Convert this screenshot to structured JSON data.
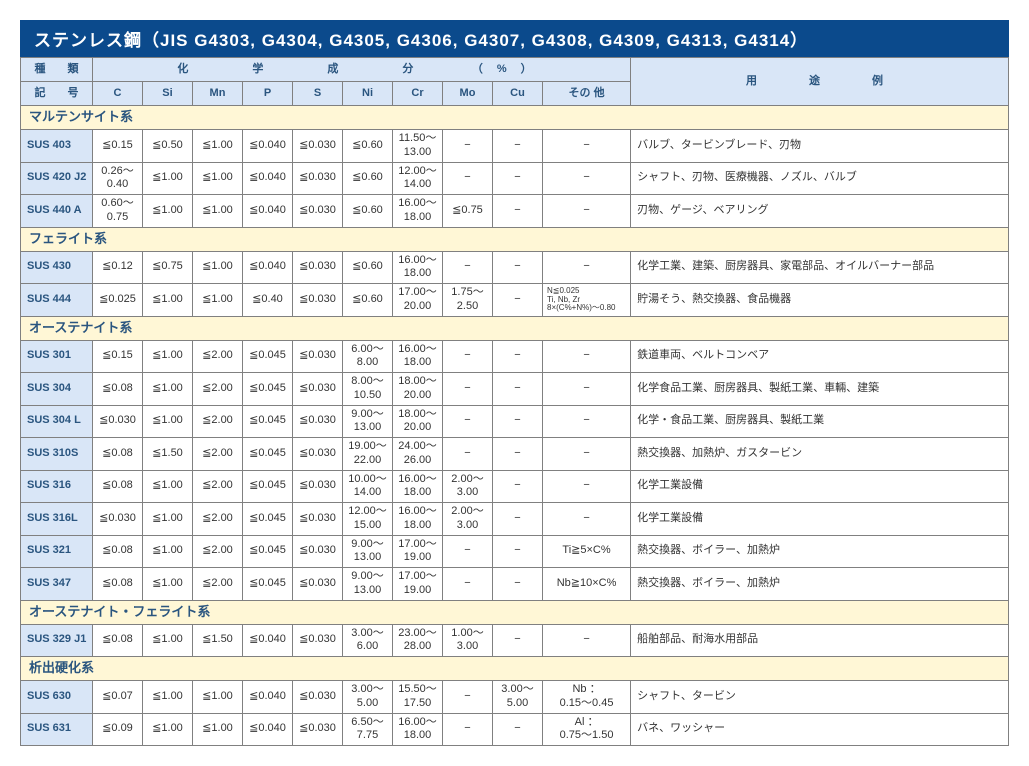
{
  "colors": {
    "banner_bg": "#0b4a8c",
    "banner_text": "#ffffff",
    "header_bg": "#d9e6f7",
    "header_text": "#2a557f",
    "category_bg": "#fff7d6",
    "border": "#808080"
  },
  "title": "ステンレス鋼（JIS G4303, G4304, G4305, G4306, G4307, G4308, G4309, G4313, G4314）",
  "header": {
    "type_label": "種　　類",
    "symbol_label": "記　　号",
    "chem_label": "化　　学　　成　　分　　（%）",
    "use_label": "用　　途　　例",
    "cols": [
      "C",
      "Si",
      "Mn",
      "P",
      "S",
      "Ni",
      "Cr",
      "Mo",
      "Cu",
      "その 他"
    ]
  },
  "categories": [
    {
      "name": "マルテンサイト系",
      "rows": [
        {
          "grade": "SUS 403",
          "chem": [
            "≦0.15",
            "≦0.50",
            "≦1.00",
            "≦0.040",
            "≦0.030",
            "≦0.60",
            "11.50〜\n13.00",
            "−",
            "−",
            "−"
          ],
          "use": "バルブ、タービンブレード、刃物"
        },
        {
          "grade": "SUS 420 J2",
          "chem": [
            "0.26〜\n0.40",
            "≦1.00",
            "≦1.00",
            "≦0.040",
            "≦0.030",
            "≦0.60",
            "12.00〜\n14.00",
            "−",
            "−",
            "−"
          ],
          "use": "シャフト、刃物、医療機器、ノズル、バルブ"
        },
        {
          "grade": "SUS 440 A",
          "chem": [
            "0.60〜\n0.75",
            "≦1.00",
            "≦1.00",
            "≦0.040",
            "≦0.030",
            "≦0.60",
            "16.00〜\n18.00",
            "≦0.75",
            "−",
            "−"
          ],
          "use": "刃物、ゲージ、ベアリング"
        }
      ]
    },
    {
      "name": "フェライト系",
      "rows": [
        {
          "grade": "SUS 430",
          "chem": [
            "≦0.12",
            "≦0.75",
            "≦1.00",
            "≦0.040",
            "≦0.030",
            "≦0.60",
            "16.00〜\n18.00",
            "−",
            "−",
            "−"
          ],
          "use": "化学工業、建築、厨房器具、家電部品、オイルバーナー部品"
        },
        {
          "grade": "SUS 444",
          "chem": [
            "≦0.025",
            "≦1.00",
            "≦1.00",
            "≦0.40",
            "≦0.030",
            "≦0.60",
            "17.00〜\n20.00",
            "1.75〜\n2.50",
            "−",
            {
              "tiny": "N≦0.025\nTi, Nb, Zr\n8×(C%+N%)〜0.80"
            }
          ],
          "use": "貯湯そう、熱交換器、食品機器"
        }
      ]
    },
    {
      "name": "オーステナイト系",
      "rows": [
        {
          "grade": "SUS 301",
          "chem": [
            "≦0.15",
            "≦1.00",
            "≦2.00",
            "≦0.045",
            "≦0.030",
            "6.00〜\n8.00",
            "16.00〜\n18.00",
            "−",
            "−",
            "−"
          ],
          "use": "鉄道車両、ベルトコンベア"
        },
        {
          "grade": "SUS 304",
          "chem": [
            "≦0.08",
            "≦1.00",
            "≦2.00",
            "≦0.045",
            "≦0.030",
            "8.00〜\n10.50",
            "18.00〜\n20.00",
            "−",
            "−",
            "−"
          ],
          "use": "化学食品工業、厨房器具、製紙工業、車輛、建築"
        },
        {
          "grade": "SUS 304 L",
          "chem": [
            "≦0.030",
            "≦1.00",
            "≦2.00",
            "≦0.045",
            "≦0.030",
            "9.00〜\n13.00",
            "18.00〜\n20.00",
            "−",
            "−",
            "−"
          ],
          "use": "化学・食品工業、厨房器具、製紙工業"
        },
        {
          "grade": "SUS 310S",
          "chem": [
            "≦0.08",
            "≦1.50",
            "≦2.00",
            "≦0.045",
            "≦0.030",
            "19.00〜\n22.00",
            "24.00〜\n26.00",
            "−",
            "−",
            "−"
          ],
          "use": "熱交換器、加熱炉、ガスタービン"
        },
        {
          "grade": "SUS 316",
          "chem": [
            "≦0.08",
            "≦1.00",
            "≦2.00",
            "≦0.045",
            "≦0.030",
            "10.00〜\n14.00",
            "16.00〜\n18.00",
            "2.00〜\n3.00",
            "−",
            "−"
          ],
          "use": "化学工業設備"
        },
        {
          "grade": "SUS 316L",
          "chem": [
            "≦0.030",
            "≦1.00",
            "≦2.00",
            "≦0.045",
            "≦0.030",
            "12.00〜\n15.00",
            "16.00〜\n18.00",
            "2.00〜\n3.00",
            "−",
            "−"
          ],
          "use": "化学工業設備"
        },
        {
          "grade": "SUS 321",
          "chem": [
            "≦0.08",
            "≦1.00",
            "≦2.00",
            "≦0.045",
            "≦0.030",
            "9.00〜\n13.00",
            "17.00〜\n19.00",
            "−",
            "−",
            "Ti≧5×C%"
          ],
          "use": "熱交換器、ボイラー、加熱炉"
        },
        {
          "grade": "SUS 347",
          "chem": [
            "≦0.08",
            "≦1.00",
            "≦2.00",
            "≦0.045",
            "≦0.030",
            "9.00〜\n13.00",
            "17.00〜\n19.00",
            "−",
            "−",
            "Nb≧10×C%"
          ],
          "use": "熱交換器、ボイラー、加熱炉"
        }
      ]
    },
    {
      "name": "オーステナイト・フェライト系",
      "rows": [
        {
          "grade": "SUS 329 J1",
          "chem": [
            "≦0.08",
            "≦1.00",
            "≦1.50",
            "≦0.040",
            "≦0.030",
            "3.00〜\n6.00",
            "23.00〜\n28.00",
            "1.00〜\n3.00",
            "−",
            "−"
          ],
          "use": "船舶部品、耐海水用部品"
        }
      ]
    },
    {
      "name": "析出硬化系",
      "rows": [
        {
          "grade": "SUS 630",
          "chem": [
            "≦0.07",
            "≦1.00",
            "≦1.00",
            "≦0.040",
            "≦0.030",
            "3.00〜\n5.00",
            "15.50〜\n17.50",
            "−",
            "3.00〜\n5.00",
            "Nb ：\n0.15〜0.45"
          ],
          "use": "シャフト、タービン"
        },
        {
          "grade": "SUS 631",
          "chem": [
            "≦0.09",
            "≦1.00",
            "≦1.00",
            "≦0.040",
            "≦0.030",
            "6.50〜\n7.75",
            "16.00〜\n18.00",
            "−",
            "−",
            "Al ：\n0.75〜1.50"
          ],
          "use": "バネ、ワッシャー"
        }
      ]
    }
  ]
}
